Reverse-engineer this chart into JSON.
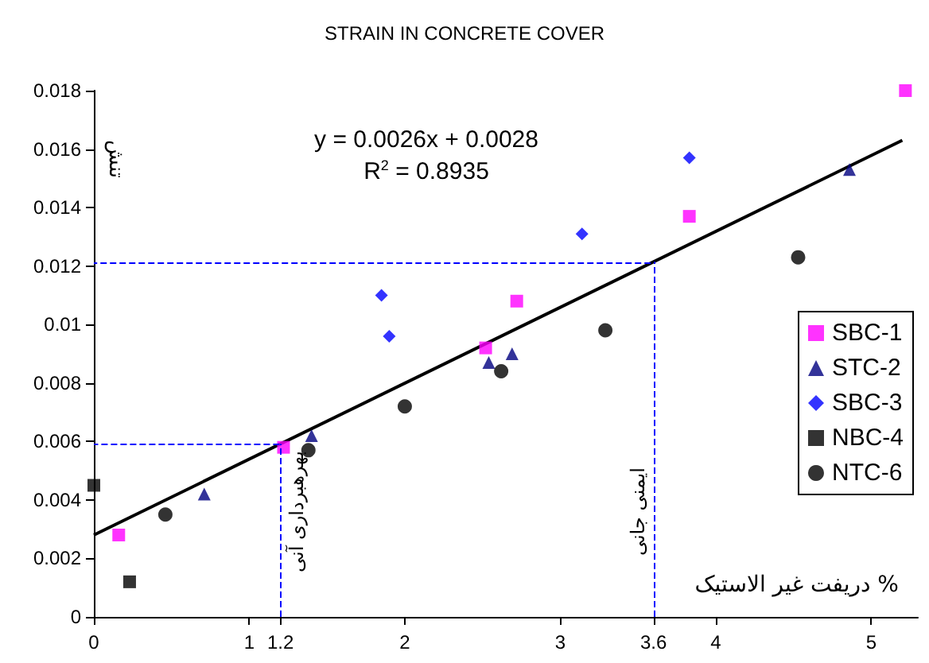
{
  "chart_data": {
    "type": "scatter",
    "title": "STRAIN IN CONCRETE COVER",
    "xlabel": "دریفت غیر الاستیک %",
    "ylabel": "تنش",
    "annotations": [
      "y = 0.0026x + 0.0028",
      "R$^{2}$ = 0.8935"
    ],
    "xlim": [
      0,
      5.3
    ],
    "xticks": [
      0,
      1,
      1.2,
      2,
      3,
      3.6,
      4,
      5
    ],
    "ylim": [
      0,
      0.018
    ],
    "yticks": [
      0,
      0.002,
      0.004,
      0.006,
      0.008,
      0.01,
      0.012,
      0.014,
      0.016,
      0.018
    ],
    "grid": false,
    "legend": "right",
    "series": [
      {
        "name": "SBC-1",
        "color": "#ff00ff",
        "marker": "square",
        "x": [
          0.16,
          1.22,
          2.52,
          2.72,
          3.83,
          5.22
        ],
        "values": [
          0.0028,
          0.0058,
          0.0092,
          0.0108,
          0.0137,
          0.018
        ]
      },
      {
        "name": "STC-2",
        "color": "#000080",
        "marker": "triangle",
        "x": [
          0.71,
          1.4,
          2.54,
          2.69,
          4.86
        ],
        "values": [
          0.0042,
          0.0062,
          0.0087,
          0.009,
          0.0153
        ]
      },
      {
        "name": "SBC-3",
        "color": "#0000ff",
        "marker": "diamond",
        "x": [
          1.85,
          1.9,
          3.14,
          3.83
        ],
        "values": [
          0.011,
          0.0096,
          0.0131,
          0.0157
        ]
      },
      {
        "name": "NBC-4",
        "color": "#000000",
        "marker": "square",
        "x": [
          0,
          0.23
        ],
        "values": [
          0.0045,
          0.0012
        ]
      },
      {
        "name": "NTC-6",
        "color": "#000000",
        "marker": "circle",
        "x": [
          0.46,
          1.38,
          2,
          2.62,
          3.29,
          4.53
        ],
        "values": [
          0.0035,
          0.0057,
          0.0072,
          0.0084,
          0.0098,
          0.0123
        ]
      },
      {
        "type": "line",
        "color": "#000000",
        "marker": "none",
        "x": [
          0,
          5.2
        ],
        "values": [
          0.0028,
          0.0163
        ]
      }
    ],
    "ref_lines": [
      {
        "axis": "x",
        "value": 1.2,
        "label": "بهرهبرداری آنی",
        "color": "#0000ff",
        "line_style": "dashed"
      },
      {
        "axis": "x",
        "value": 3.6,
        "label": "ایمنی جانی",
        "color": "#0000ff",
        "line_style": "dashed"
      },
      {
        "axis": "y",
        "value": 0.0059,
        "color": "#0000ff",
        "line_style": "dashed"
      },
      {
        "axis": "y",
        "value": 0.0121,
        "color": "#0000ff",
        "line_style": "dashed"
      }
    ]
  }
}
